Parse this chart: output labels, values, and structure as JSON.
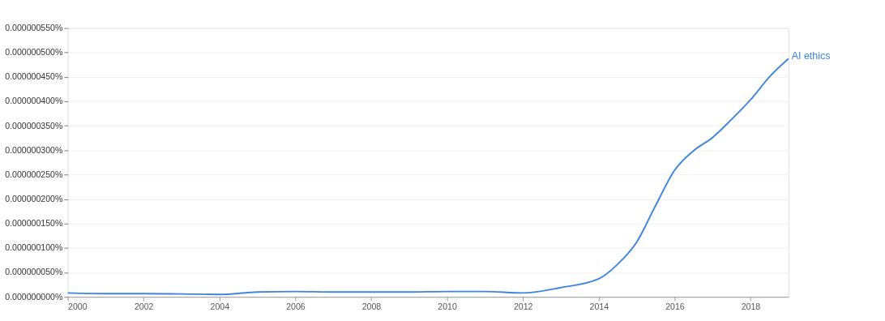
{
  "chart_data": {
    "type": "line",
    "x": [
      2000,
      2001,
      2002,
      2003,
      2004,
      2005,
      2006,
      2007,
      2008,
      2009,
      2010,
      2011,
      2012,
      2013,
      2014,
      2014.5,
      2015,
      2015.5,
      2016,
      2016.5,
      2017,
      2017.5,
      2018,
      2018.5,
      2019
    ],
    "series": [
      {
        "name": "AI ethics",
        "color": "#3d85e0",
        "values": [
          8e-09,
          6.5e-09,
          6.5e-09,
          6e-09,
          5e-09,
          1e-08,
          1.1e-08,
          1e-08,
          1e-08,
          1e-08,
          1.1e-08,
          1.1e-08,
          8e-09,
          1.9e-08,
          3.7e-08,
          6.7e-08,
          1.12e-07,
          1.87e-07,
          2.59e-07,
          2.99e-07,
          3.26e-07,
          3.63e-07,
          4.03e-07,
          4.5e-07,
          4.87e-07
        ]
      }
    ],
    "xlim": [
      2000,
      2019
    ],
    "xticks": [
      2000,
      2002,
      2004,
      2006,
      2008,
      2010,
      2012,
      2014,
      2016,
      2018
    ],
    "ylim": [
      0,
      5.5e-07
    ],
    "yticks": [
      {
        "value": 0,
        "label": "0.000000000%"
      },
      {
        "value": 5e-08,
        "label": "0.000000050%"
      },
      {
        "value": 1e-07,
        "label": "0.000000100%"
      },
      {
        "value": 1.5e-07,
        "label": "0.000000150%"
      },
      {
        "value": 2e-07,
        "label": "0.000000200%"
      },
      {
        "value": 2.5e-07,
        "label": "0.000000250%"
      },
      {
        "value": 3e-07,
        "label": "0.000000300%"
      },
      {
        "value": 3.5e-07,
        "label": "0.000000350%"
      },
      {
        "value": 4e-07,
        "label": "0.000000400%"
      },
      {
        "value": 4.5e-07,
        "label": "0.000000450%"
      },
      {
        "value": 5e-07,
        "label": "0.000000500%"
      },
      {
        "value": 5.5e-07,
        "label": "0.000000550%"
      }
    ],
    "grid": "y",
    "legend": false,
    "marker": "none",
    "line_style": "solid"
  }
}
